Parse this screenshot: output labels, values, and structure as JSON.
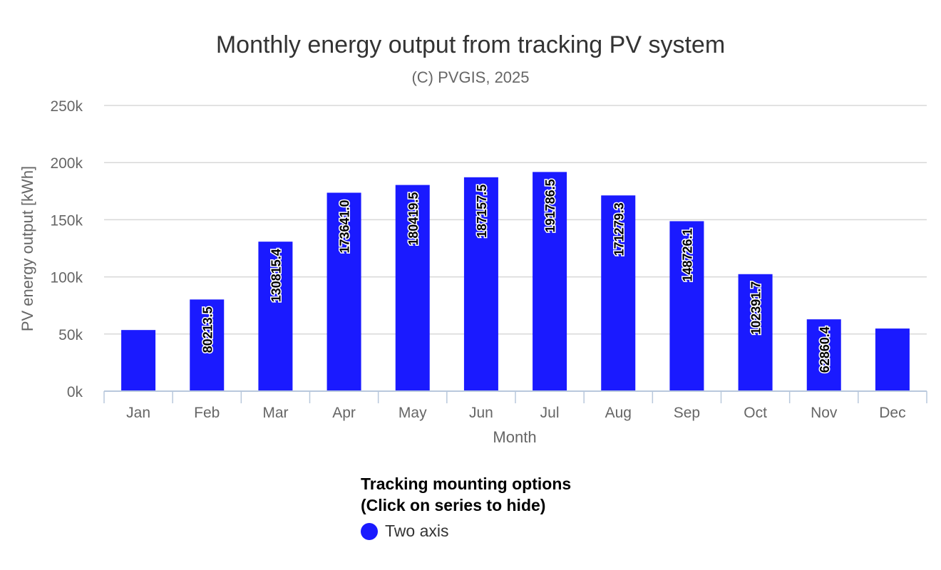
{
  "chart_data": {
    "type": "bar",
    "title": "Monthly energy output from tracking PV system",
    "subtitle": "(C) PVGIS, 2025",
    "xlabel": "Month",
    "ylabel": "PV energy output [kWh]",
    "categories": [
      "Jan",
      "Feb",
      "Mar",
      "Apr",
      "May",
      "Jun",
      "Jul",
      "Aug",
      "Sep",
      "Oct",
      "Nov",
      "Dec"
    ],
    "series": [
      {
        "name": "Two axis",
        "color": "#1a1aff",
        "values": [
          53500,
          80213.5,
          130815.4,
          173641.0,
          180419.5,
          187157.5,
          191786.5,
          171279.3,
          148726.1,
          102391.7,
          62860.4,
          54800
        ],
        "data_labels": [
          "",
          "80213.5",
          "130815.4",
          "173641.0",
          "180419.5",
          "187157.5",
          "191786.5",
          "171279.3",
          "148726.1",
          "102391.7",
          "62860.4",
          ""
        ]
      }
    ],
    "ylim": [
      0,
      250000
    ],
    "yticks": [
      0,
      50000,
      100000,
      150000,
      200000,
      250000
    ],
    "ytick_labels": [
      "0k",
      "50k",
      "100k",
      "150k",
      "200k",
      "250k"
    ],
    "grid": true,
    "legend": {
      "title_line1": "Tracking mounting options",
      "title_line2": "(Click on series to hide)",
      "placement": "bottom-center"
    }
  }
}
